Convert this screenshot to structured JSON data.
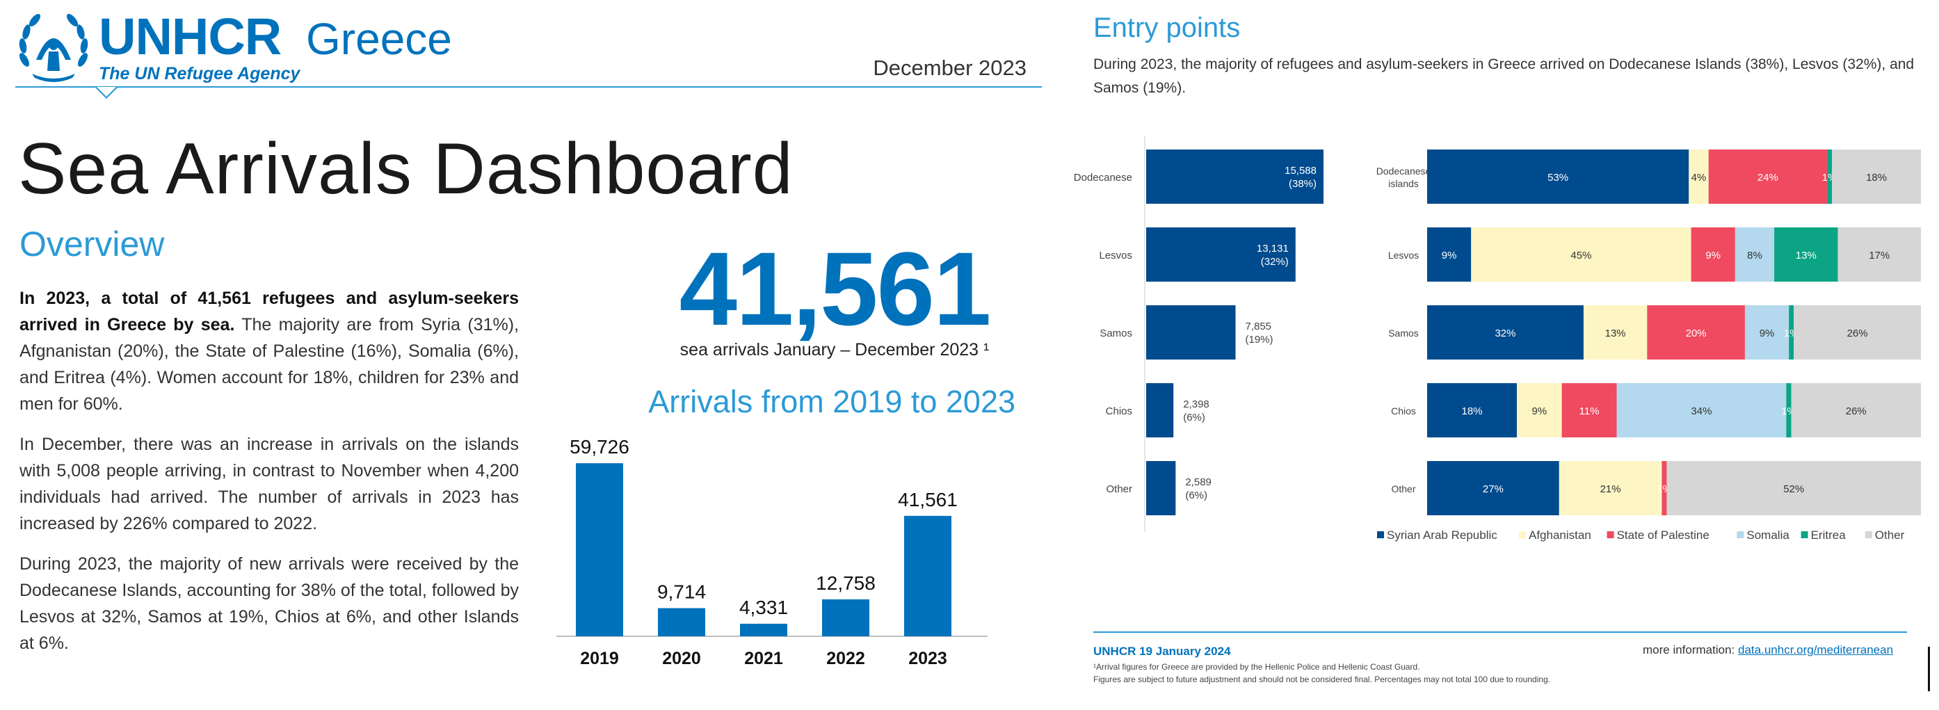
{
  "header": {
    "org_name": "UNHCR",
    "org_tagline": "The UN Refugee Agency",
    "country": "Greece",
    "report_date": "December 2023"
  },
  "page_title": "Sea Arrivals Dashboard",
  "overview": {
    "title": "Overview",
    "para1_bold": "In 2023, a total of 41,561 refugees and asylum-seekers arrived in Greece by sea.",
    "para1_rest": " The majority are from Syria (31%), Afgnanistan (20%), the State of Palestine (16%), Somalia (6%), and Eritrea (4%). Women account for 18%, children for 23% and men for 60%.",
    "para2": "In December, there was an increase in arrivals on the islands with 5,008 people arriving, in contrast to November when 4,200 individuals had arrived. The number of arrivals in 2023 has increased by 226% compared to 2022.",
    "para3": "During 2023, the majority of new arrivals were received by the Dodecanese Islands, accounting for 38% of the total, followed by Lesvos at 32%, Samos at 19%, Chios at 6%, and other Islands at 6%."
  },
  "kpi": {
    "value": "41,561",
    "label": "sea arrivals January – December 2023 ¹"
  },
  "entry_points": {
    "title": "Entry points",
    "description": "During 2023, the majority of refugees and asylum-seekers in Greece arrived on Dodecanese Islands (38%), Lesvos (32%), and Samos (19%)."
  },
  "colors": {
    "brand_blue": "#0072bc",
    "accent_blue": "#2b9ad6",
    "syria": "#004b8d",
    "afghanistan": "#fdf5c4",
    "palestine": "#ef4a60",
    "somalia": "#b4d8ee",
    "eritrea": "#0ba484",
    "other": "#d6d6d6"
  },
  "chart_data": [
    {
      "type": "bar",
      "title": "Arrivals from 2019 to 2023",
      "categories": [
        "2019",
        "2020",
        "2021",
        "2022",
        "2023"
      ],
      "values": [
        59726,
        9714,
        4331,
        12758,
        41561
      ],
      "labels": [
        "59,726",
        "9,714",
        "4,331",
        "12,758",
        "41,561"
      ],
      "xlabel": "",
      "ylabel": "",
      "ylim": [
        0,
        60000
      ],
      "grid": false,
      "color": "#0072bc"
    },
    {
      "type": "bar",
      "orientation": "horizontal",
      "categories": [
        "Dodecanese",
        "Lesvos",
        "Samos",
        "Chios",
        "Other"
      ],
      "values": [
        15588,
        13131,
        7855,
        2398,
        2589
      ],
      "labels": [
        [
          "15,588",
          "(38%)"
        ],
        [
          "13,131",
          "(32%)"
        ],
        [
          "7,855",
          "(19%)"
        ],
        [
          "2,398",
          "(6%)"
        ],
        [
          "2,589",
          "(6%)"
        ]
      ],
      "xlim": [
        0,
        15588
      ],
      "grid": false,
      "color": "#004b8d"
    },
    {
      "type": "bar",
      "orientation": "horizontal",
      "stacked": "percent",
      "categories": [
        [
          "Dodecanese",
          "islands"
        ],
        [
          "Lesvos"
        ],
        [
          "Samos"
        ],
        [
          "Chios"
        ],
        [
          "Other"
        ]
      ],
      "series": [
        {
          "name": "Syrian Arab Republic",
          "color": "#004b8d",
          "values": [
            53,
            9,
            32,
            18,
            27
          ],
          "labels": [
            "53%",
            "9%",
            "32%",
            "18%",
            "27%"
          ]
        },
        {
          "name": "Afghanistan",
          "color": "#fdf5c4",
          "values": [
            4,
            45,
            13,
            9,
            21
          ],
          "labels": [
            "4%",
            "45%",
            "13%",
            "9%",
            "21%"
          ]
        },
        {
          "name": "State of Palestine",
          "color": "#ef4a60",
          "values": [
            24,
            9,
            20,
            11,
            1
          ],
          "labels": [
            "24%",
            "9%",
            "20%",
            "11%",
            "1%"
          ]
        },
        {
          "name": "Somalia",
          "color": "#b4d8ee",
          "values": [
            0,
            8,
            9,
            34,
            0
          ],
          "labels": [
            "",
            "8%",
            "9%",
            "34%",
            ""
          ]
        },
        {
          "name": "Eritrea",
          "color": "#0ba484",
          "values": [
            1,
            13,
            1,
            1,
            0
          ],
          "labels": [
            "1%",
            "13%",
            "1%",
            "1%",
            ""
          ]
        },
        {
          "name": "Other",
          "color": "#d6d6d6",
          "values": [
            18,
            17,
            26,
            26,
            52
          ],
          "labels": [
            "18%",
            "17%",
            "26%",
            "26%",
            "52%"
          ]
        }
      ],
      "legend": "bottom"
    }
  ],
  "footer": {
    "brand_date": "UNHCR 19 January 2024",
    "more_label": "more information:",
    "more_link": "data.unhcr.org/mediterranean",
    "note1": "¹Arrival figures for Greece are provided by the Hellenic Police and Hellenic Coast Guard.",
    "note2": "Figures are subject to future adjustment and should not be considered final. Percentages may not total 100 due to rounding."
  }
}
